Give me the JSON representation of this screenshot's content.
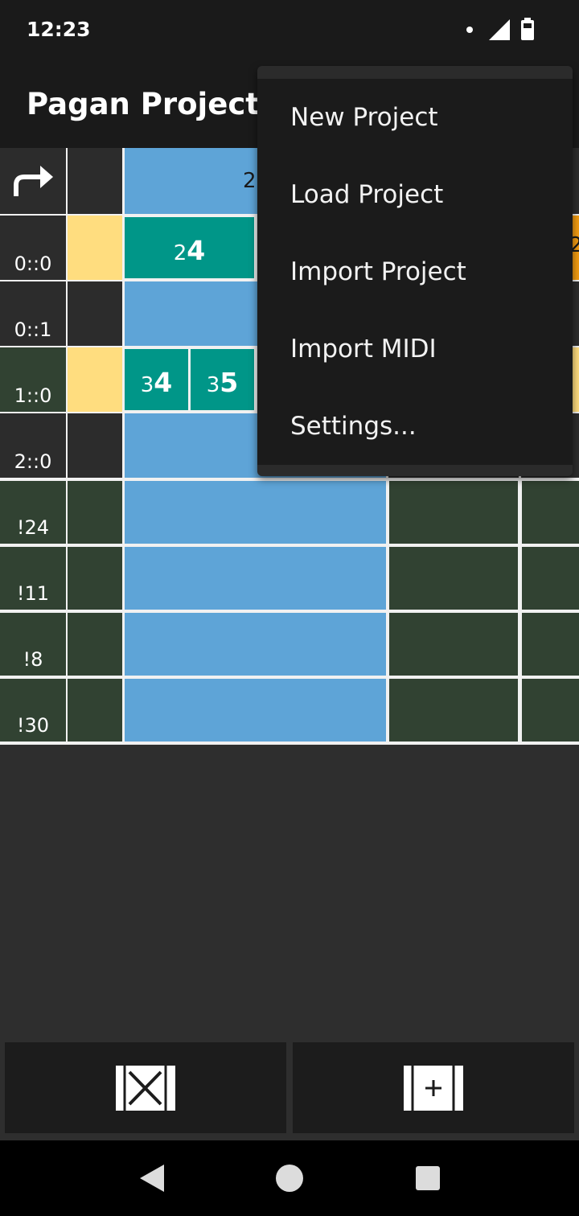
{
  "status_bar": {
    "time": "12:23",
    "icons": [
      "notification-dot-icon",
      "signal-icon",
      "battery-icon"
    ]
  },
  "app_bar": {
    "title": "Pagan Project"
  },
  "grid": {
    "header_value": "2",
    "row_labels": [
      "0::0",
      "0::1",
      "1::0",
      "2::0",
      "!24",
      "!11",
      "!8",
      "!30"
    ],
    "notes": [
      {
        "octave": "2",
        "note": "4"
      },
      {
        "octave": "3",
        "note": "4"
      },
      {
        "octave": "3",
        "note": "5"
      }
    ],
    "partial_note": "2",
    "colors": {
      "line_label": "#2c2c2c",
      "percussion": "#314232",
      "selected": "#ffdd7f",
      "column": "#5ea4d7",
      "note": "#009688",
      "highlight": "#f39c12"
    }
  },
  "overflow_menu": {
    "items": [
      "New Project",
      "Load Project",
      "Import Project",
      "Import MIDI",
      "Settings..."
    ]
  },
  "bottom_buttons": [
    {
      "name": "remove-beat-button",
      "icon": "remove-column-icon"
    },
    {
      "name": "add-beat-button",
      "icon": "add-column-icon"
    }
  ],
  "nav_bar": {
    "icons": [
      "back-icon",
      "home-icon",
      "recents-icon"
    ]
  }
}
